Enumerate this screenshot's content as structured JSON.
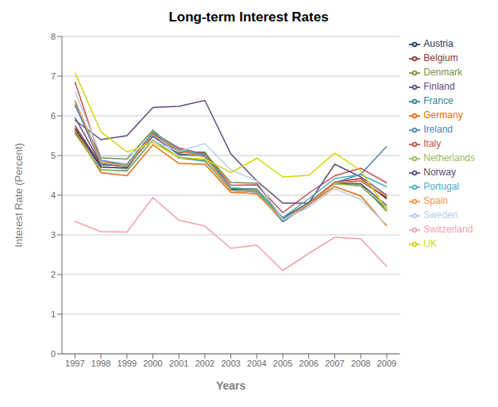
{
  "chart_data": {
    "type": "line",
    "title": "Long-term Interest Rates",
    "xlabel": "Years",
    "ylabel": "Interest Rate (Percent)",
    "x": [
      1997,
      1998,
      1999,
      2000,
      2001,
      2002,
      2003,
      2004,
      2005,
      2006,
      2007,
      2008,
      2009
    ],
    "xlim": [
      1996.5,
      2009.5
    ],
    "xticks": [
      1997,
      1998,
      1999,
      2000,
      2001,
      2002,
      2003,
      2004,
      2005,
      2006,
      2007,
      2008,
      2009
    ],
    "ylim": [
      0,
      8
    ],
    "yticks": [
      0,
      1,
      2,
      3,
      4,
      5,
      6,
      7,
      8
    ],
    "grid": true,
    "legend": "right",
    "series": [
      {
        "name": "Austria",
        "color": "#17375e",
        "values": [
          5.68,
          4.71,
          4.68,
          5.56,
          5.08,
          5.08,
          4.15,
          4.15,
          3.39,
          3.81,
          4.3,
          4.36,
          3.94
        ]
      },
      {
        "name": "Belgium",
        "color": "#953735",
        "values": [
          5.75,
          4.76,
          4.75,
          5.59,
          5.13,
          5.0,
          4.18,
          4.15,
          3.43,
          3.81,
          4.33,
          4.42,
          3.9
        ]
      },
      {
        "name": "Denmark",
        "color": "#76923c",
        "values": [
          6.26,
          4.94,
          4.91,
          5.64,
          5.08,
          5.06,
          4.32,
          4.3,
          3.4,
          3.81,
          4.29,
          4.28,
          3.59
        ]
      },
      {
        "name": "Finland",
        "color": "#5f497a",
        "values": [
          5.96,
          4.79,
          4.72,
          5.48,
          5.04,
          4.98,
          4.13,
          4.11,
          3.37,
          3.78,
          4.29,
          4.29,
          3.74
        ]
      },
      {
        "name": "France",
        "color": "#31849b",
        "values": [
          5.59,
          4.64,
          4.61,
          5.39,
          4.94,
          4.86,
          4.13,
          4.1,
          3.41,
          3.8,
          4.3,
          4.23,
          3.65
        ]
      },
      {
        "name": "Germany",
        "color": "#e36c09",
        "values": [
          5.64,
          4.57,
          4.49,
          5.27,
          4.8,
          4.78,
          4.07,
          4.04,
          3.35,
          3.76,
          4.22,
          3.98,
          3.22
        ]
      },
      {
        "name": "Ireland",
        "color": "#4f81bd",
        "values": [
          6.29,
          4.79,
          4.71,
          5.51,
          5.01,
          5.01,
          4.13,
          4.08,
          3.33,
          3.76,
          4.31,
          4.53,
          5.23
        ]
      },
      {
        "name": "Italy",
        "color": "#c0504d",
        "values": [
          6.86,
          4.88,
          4.73,
          5.58,
          5.19,
          5.03,
          4.25,
          4.26,
          3.56,
          4.05,
          4.49,
          4.68,
          4.31
        ]
      },
      {
        "name": "Netherlands",
        "color": "#9bbb59",
        "values": [
          5.55,
          4.63,
          4.63,
          5.4,
          4.96,
          4.89,
          4.12,
          4.1,
          3.37,
          3.78,
          4.29,
          4.23,
          3.69
        ]
      },
      {
        "name": "Norway",
        "color": "#604a7b",
        "values": [
          5.89,
          5.4,
          5.5,
          6.21,
          6.24,
          6.39,
          5.04,
          4.36,
          3.8,
          3.8,
          4.78,
          4.46,
          4.0
        ]
      },
      {
        "name": "Portugal",
        "color": "#4bacc6",
        "values": [
          6.36,
          4.88,
          4.78,
          5.59,
          5.16,
          5.01,
          4.18,
          4.14,
          3.44,
          3.91,
          4.42,
          4.52,
          4.21
        ]
      },
      {
        "name": "Spain",
        "color": "#f79646",
        "values": [
          6.4,
          4.83,
          4.73,
          5.53,
          5.12,
          4.96,
          4.12,
          4.02,
          3.38,
          3.78,
          4.31,
          4.37,
          3.97
        ]
      },
      {
        "name": "Sweden",
        "color": "#b8cce4",
        "values": [
          6.62,
          4.99,
          4.99,
          5.37,
          5.1,
          5.3,
          4.64,
          4.36,
          3.38,
          3.7,
          4.17,
          3.89,
          3.25
        ]
      },
      {
        "name": "Switzerland",
        "color": "#f2a0a8",
        "values": [
          3.34,
          3.08,
          3.07,
          3.94,
          3.37,
          3.22,
          2.66,
          2.74,
          2.1,
          2.53,
          2.94,
          2.9,
          2.2
        ]
      },
      {
        "name": "UK",
        "color": "#d4d40a",
        "values": [
          7.09,
          5.6,
          5.09,
          5.33,
          4.95,
          4.91,
          4.57,
          4.93,
          4.46,
          4.5,
          5.06,
          4.62,
          3.63
        ]
      }
    ]
  }
}
